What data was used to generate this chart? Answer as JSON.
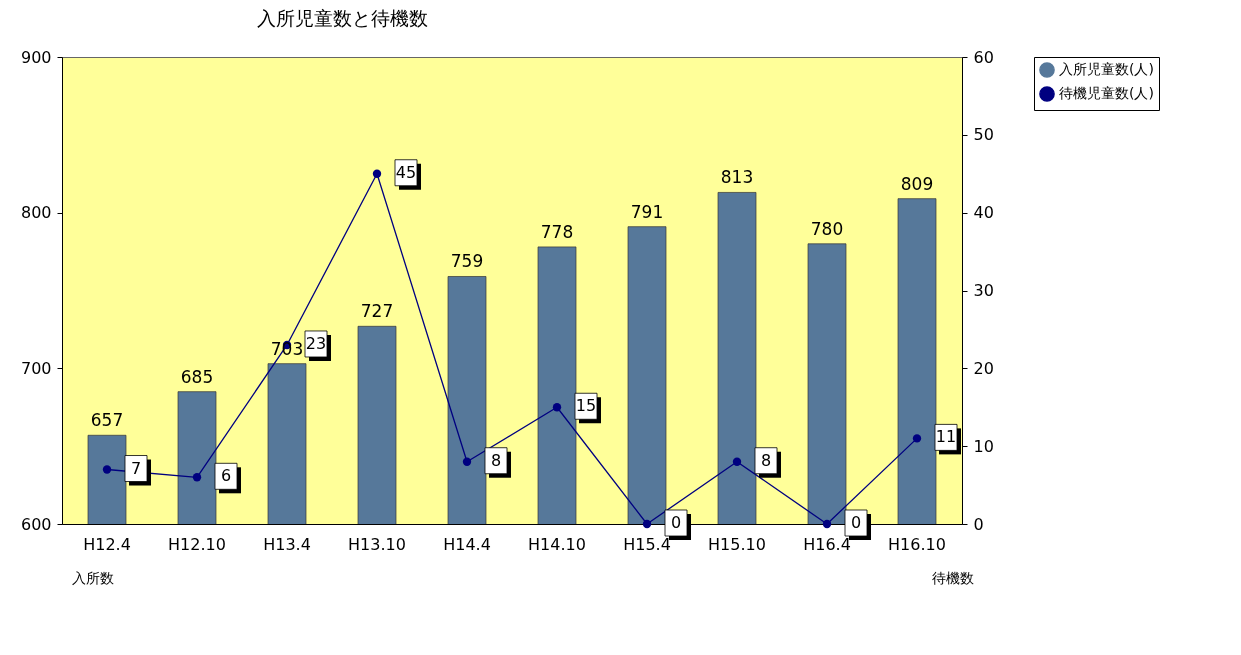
{
  "chart_data": {
    "type": "bar",
    "title": "入所児童数と待機数",
    "annotations": [
      "入所数",
      "待機数"
    ],
    "categories": [
      "H12.4",
      "H12.10",
      "H13.4",
      "H13.10",
      "H14.4",
      "H14.10",
      "H15.4",
      "H15.10",
      "H16.4",
      "H16.10"
    ],
    "series": [
      {
        "name": "入所児童数(人)",
        "color": "#56789a",
        "values": [
          657,
          685,
          703,
          727,
          759,
          778,
          791,
          813,
          780,
          809
        ]
      },
      {
        "name": "待機児童数(人)",
        "type": "line",
        "axis": "y2",
        "color": "#000080",
        "values": [
          7,
          6,
          23,
          45,
          8,
          15,
          0,
          8,
          0,
          11
        ]
      }
    ],
    "ylim": [
      600,
      900
    ],
    "yticks": [
      600,
      700,
      800,
      900
    ],
    "y2lim": [
      0,
      60
    ],
    "y2ticks": [
      0,
      10,
      20,
      30,
      40,
      50,
      60
    ],
    "data_labels": true,
    "legend": "right",
    "marker": "circle",
    "line_style": "solid",
    "grid": false
  }
}
